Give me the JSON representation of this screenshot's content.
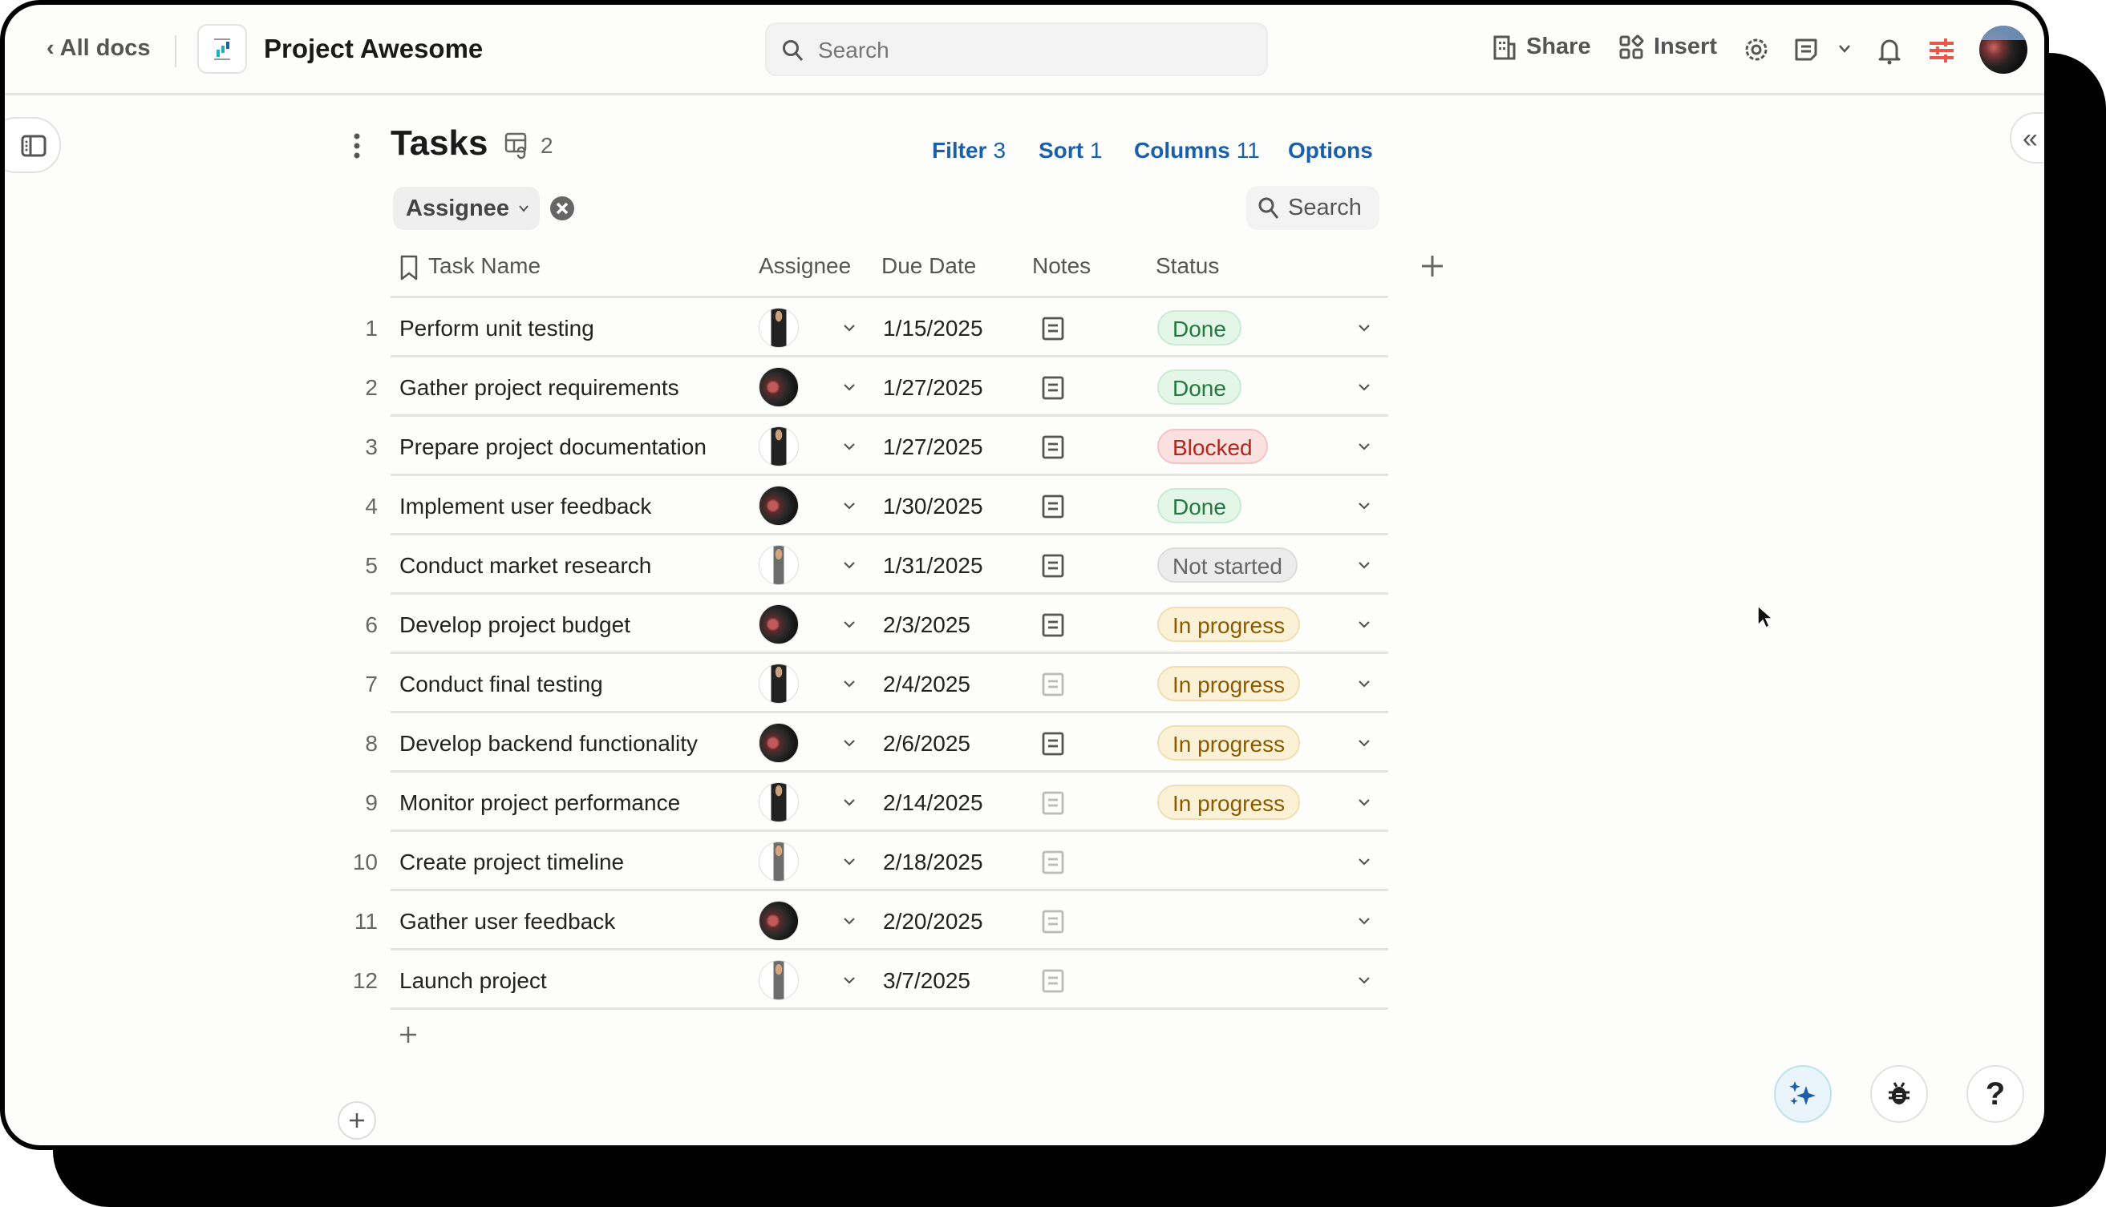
{
  "header": {
    "back_label": "All docs",
    "doc_title": "Project Awesome",
    "search_placeholder": "Search",
    "share_label": "Share",
    "insert_label": "Insert"
  },
  "table_view": {
    "title": "Tasks",
    "linked_count": "2",
    "filter_label": "Filter",
    "filter_count": "3",
    "sort_label": "Sort",
    "sort_count": "1",
    "columns_label": "Columns",
    "columns_count": "11",
    "options_label": "Options",
    "group_chip": "Assignee",
    "search_label": "Search",
    "columns": [
      "Task Name",
      "Assignee",
      "Due Date",
      "Notes",
      "Status"
    ]
  },
  "status_colors": {
    "Done": {
      "bg": "#e3f6e8",
      "border": "#c9ebd2",
      "fg": "#23793f"
    },
    "Blocked": {
      "bg": "#fbe0e0",
      "border": "#f2c4c4",
      "fg": "#b3261e"
    },
    "Not started": {
      "bg": "#ececec",
      "border": "#dcdcdc",
      "fg": "#666666"
    },
    "In progress": {
      "bg": "#fbf1d6",
      "border": "#efdfb0",
      "fg": "#8a5a00"
    }
  },
  "rows": [
    {
      "num": "1",
      "task": "Perform unit testing",
      "avatar": "person-a",
      "due": "1/15/2025",
      "has_notes": true,
      "status": "Done"
    },
    {
      "num": "2",
      "task": "Gather project requirements",
      "avatar": "person-b",
      "due": "1/27/2025",
      "has_notes": true,
      "status": "Done"
    },
    {
      "num": "3",
      "task": "Prepare project documentation",
      "avatar": "person-a",
      "due": "1/27/2025",
      "has_notes": true,
      "status": "Blocked"
    },
    {
      "num": "4",
      "task": "Implement user feedback",
      "avatar": "person-b",
      "due": "1/30/2025",
      "has_notes": true,
      "status": "Done"
    },
    {
      "num": "5",
      "task": "Conduct market research",
      "avatar": "person-c",
      "due": "1/31/2025",
      "has_notes": true,
      "status": "Not started"
    },
    {
      "num": "6",
      "task": "Develop project budget",
      "avatar": "person-b",
      "due": "2/3/2025",
      "has_notes": true,
      "status": "In progress"
    },
    {
      "num": "7",
      "task": "Conduct final testing",
      "avatar": "person-a",
      "due": "2/4/2025",
      "has_notes": false,
      "status": "In progress"
    },
    {
      "num": "8",
      "task": "Develop backend functionality",
      "avatar": "person-b",
      "due": "2/6/2025",
      "has_notes": true,
      "status": "In progress"
    },
    {
      "num": "9",
      "task": "Monitor project performance",
      "avatar": "person-a",
      "due": "2/14/2025",
      "has_notes": false,
      "status": "In progress"
    },
    {
      "num": "10",
      "task": "Create project timeline",
      "avatar": "person-c",
      "due": "2/18/2025",
      "has_notes": false,
      "status": ""
    },
    {
      "num": "11",
      "task": "Gather user feedback",
      "avatar": "person-b",
      "due": "2/20/2025",
      "has_notes": false,
      "status": ""
    },
    {
      "num": "12",
      "task": "Launch project",
      "avatar": "person-c",
      "due": "3/7/2025",
      "has_notes": false,
      "status": ""
    }
  ],
  "accent_color": "#1a5fa8",
  "floating_buttons": [
    "sparkle-icon",
    "bug-icon",
    "help-icon"
  ]
}
